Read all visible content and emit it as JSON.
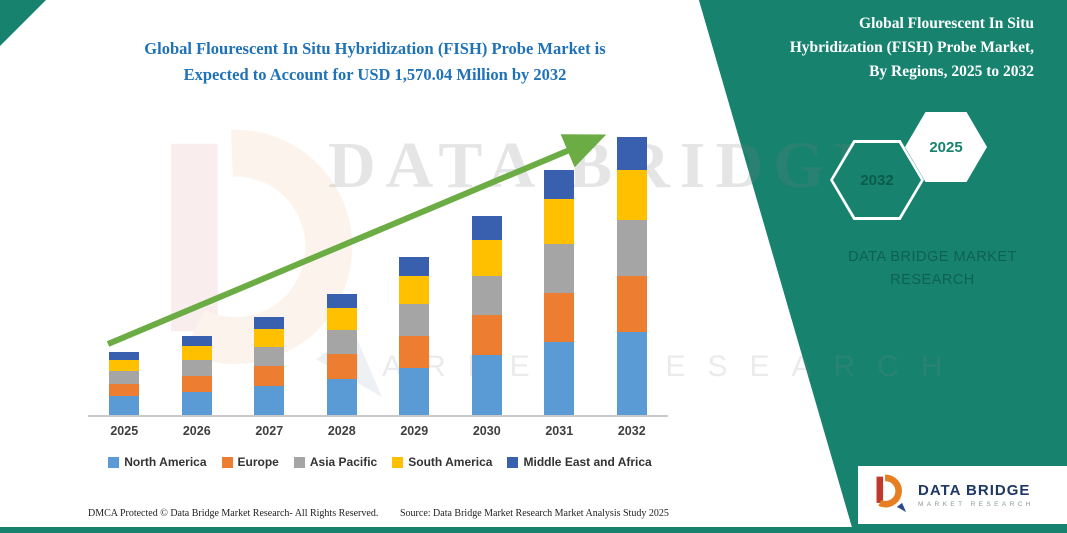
{
  "colors": {
    "panel_teal": "#17836F",
    "title_blue": "#1F72B8",
    "arrow_green": "#6CAC44",
    "axis_gray": "#C9C9C9"
  },
  "header": {
    "title_line1": "Global Flourescent In Situ Hybridization (FISH) Probe Market is",
    "title_line2": "Expected to Account for USD 1,570.04 Million by 2032"
  },
  "side_panel": {
    "title_lines": {
      "0": "Global Flourescent In Situ",
      "1": "Hybridization (FISH) Probe Market,",
      "2": "By Regions, 2025 to 2032"
    },
    "hexagon_back_label": "2032",
    "hexagon_front_label": "2025",
    "brand_text": "DATA BRIDGE MARKET RESEARCH"
  },
  "watermark": {
    "line1": "DATA BRIDGE",
    "line2": "MARKET RESEARCH"
  },
  "logo_box": {
    "brand": "DATA BRIDGE",
    "sub": "MARKET RESEARCH"
  },
  "footer": {
    "dmca": "DMCA Protected © Data Bridge Market Research-  All Rights Reserved.",
    "source": "Source: Data Bridge Market Research  Market Analysis Study 2025"
  },
  "chart_data": {
    "type": "bar",
    "stacked": true,
    "title": "Global Flourescent In Situ Hybridization (FISH) Probe Market is Expected to Account for USD 1,570.04 Million by 2032",
    "subtitle": "Global Flourescent In Situ Hybridization (FISH) Probe Market, By Regions, 2025 to 2032",
    "unit": "USD Million",
    "xlabel": "",
    "ylabel": "",
    "ylim": [
      0,
      1570.04
    ],
    "grid": false,
    "legend_position": "bottom",
    "trend_arrow": true,
    "categories": [
      "2025",
      "2026",
      "2027",
      "2028",
      "2029",
      "2030",
      "2031",
      "2032"
    ],
    "totals_estimated": [
      354,
      444,
      552,
      683,
      893,
      1127,
      1383,
      1570.04
    ],
    "series": [
      {
        "name": "North America",
        "color": "#5B9BD5",
        "values": [
          106,
          133,
          166,
          205,
          268,
          338,
          415,
          471
        ]
      },
      {
        "name": "Europe",
        "color": "#ED7D31",
        "values": [
          71,
          89,
          110,
          137,
          179,
          225,
          277,
          314
        ]
      },
      {
        "name": "Asia Pacific",
        "color": "#A5A5A5",
        "values": [
          71,
          89,
          110,
          137,
          179,
          225,
          277,
          314
        ]
      },
      {
        "name": "South America",
        "color": "#FFC000",
        "values": [
          64,
          80,
          99,
          123,
          161,
          203,
          249,
          283
        ]
      },
      {
        "name": "Middle East and Africa",
        "color": "#3860AE",
        "values": [
          42,
          53,
          66,
          82,
          107,
          135,
          166,
          188.04
        ]
      }
    ]
  }
}
